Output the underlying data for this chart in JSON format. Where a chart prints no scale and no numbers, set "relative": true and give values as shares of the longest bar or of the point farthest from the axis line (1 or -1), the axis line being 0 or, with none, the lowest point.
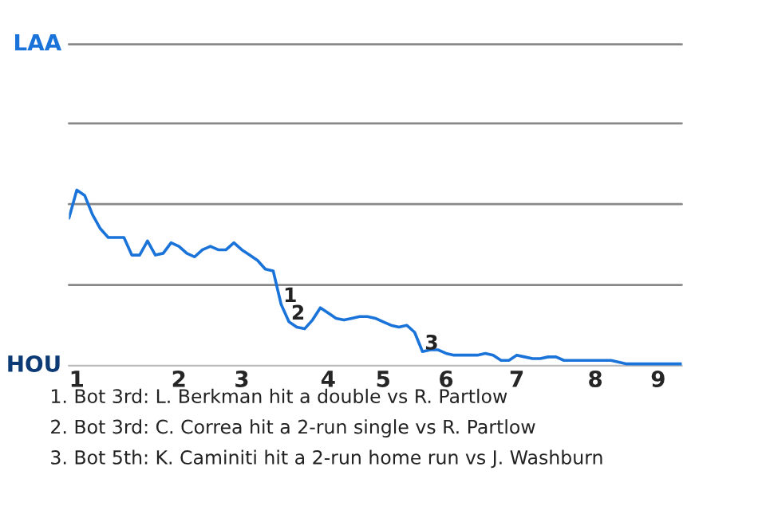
{
  "chart_data": {
    "type": "line",
    "categories": [
      null,
      "1",
      null,
      null,
      null,
      null,
      null,
      null,
      null,
      null,
      null,
      null,
      null,
      null,
      "2",
      null,
      null,
      null,
      null,
      null,
      null,
      null,
      "3",
      null,
      null,
      null,
      null,
      null,
      null,
      null,
      null,
      null,
      null,
      "4",
      null,
      null,
      null,
      null,
      null,
      null,
      "5",
      null,
      null,
      null,
      null,
      null,
      null,
      null,
      "6",
      null,
      null,
      null,
      null,
      null,
      null,
      null,
      null,
      "7",
      null,
      null,
      null,
      null,
      null,
      null,
      null,
      null,
      null,
      "8",
      null,
      null,
      null,
      null,
      null,
      null,
      null,
      "9",
      null,
      null,
      null
    ],
    "relative": true,
    "marker": "none",
    "line_style": "solid",
    "ref_lines": [
      {
        "axis": "y",
        "value": 0.46,
        "color": "#888888"
      },
      {
        "axis": "y",
        "value": 0.92,
        "color": "#888888"
      },
      {
        "axis": "y",
        "value": 1.38,
        "color": "#888888"
      },
      {
        "axis": "y",
        "value": 1.83,
        "color": "#888888"
      }
    ],
    "series": [
      {
        "color": "#1a73d9",
        "values": [
          0.84,
          1,
          0.97,
          0.86,
          0.78,
          0.73,
          0.73,
          0.73,
          0.63,
          0.63,
          0.71,
          0.63,
          0.64,
          0.7,
          0.68,
          0.64,
          0.62,
          0.66,
          0.68,
          0.66,
          0.66,
          0.7,
          0.66,
          0.63,
          0.6,
          0.55,
          0.54,
          0.35,
          0.25,
          0.22,
          0.21,
          0.26,
          0.33,
          0.3,
          0.27,
          0.26,
          0.27,
          0.28,
          0.28,
          0.27,
          0.25,
          0.23,
          0.22,
          0.23,
          0.19,
          0.08,
          0.09,
          0.09,
          0.07,
          0.06,
          0.06,
          0.06,
          0.06,
          0.07,
          0.06,
          0.03,
          0.03,
          0.06,
          0.05,
          0.04,
          0.04,
          0.05,
          0.05,
          0.03,
          0.03,
          0.03,
          0.03,
          0.03,
          0.03,
          0.03,
          0.02,
          0.01,
          0.01,
          0.01,
          0.01,
          0.01,
          0.01,
          0.01,
          0.01
        ]
      }
    ],
    "annotations": [
      "LAA",
      "HOU",
      {
        "text": "1",
        "y": 0.35
      },
      {
        "text": "2",
        "y": 0.25
      },
      {
        "text": "3",
        "y": 0.08
      },
      "1. Bot 3rd: L. Berkman hit a double vs R. Partlow",
      "2. Bot 3rd: C. Correa hit a 2-run single vs R. Partlow",
      "3. Bot 5th: K. Caminiti hit a 2-run home run vs J. Washburn"
    ]
  }
}
